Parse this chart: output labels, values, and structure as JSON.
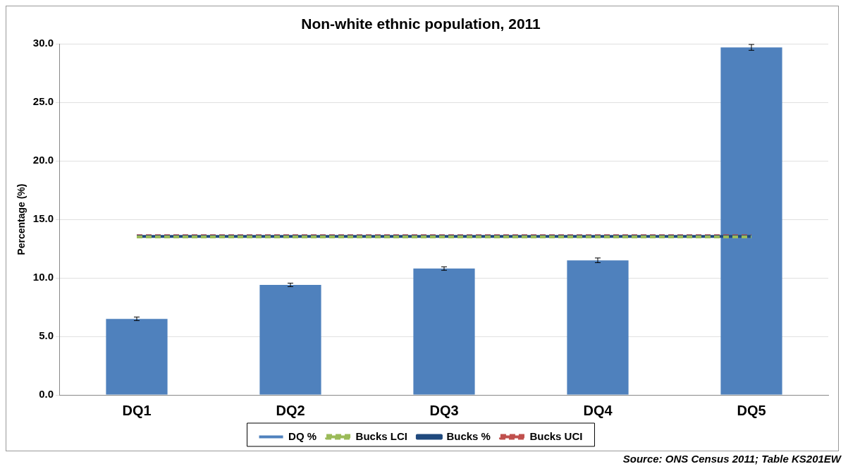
{
  "chart_data": {
    "type": "bar",
    "title": "Non-white ethnic population, 2011",
    "ylabel": "Percentage (%)",
    "categories": [
      "DQ1",
      "DQ2",
      "DQ3",
      "DQ4",
      "DQ5"
    ],
    "series": [
      {
        "name": "DQ %",
        "color": "#4f81bd",
        "values": [
          6.5,
          9.4,
          10.8,
          11.5,
          29.7
        ],
        "errors": [
          0.15,
          0.15,
          0.15,
          0.2,
          0.25
        ]
      },
      {
        "name": "Bucks LCI",
        "type": "line",
        "color": "#9bbb59",
        "line_style": "dashed",
        "values": [
          13.5,
          13.5,
          13.5,
          13.5,
          13.5
        ]
      },
      {
        "name": "Bucks %",
        "type": "line",
        "color": "#1f497d",
        "line_style": "solid",
        "values": [
          13.55,
          13.55,
          13.55,
          13.55,
          13.55
        ]
      },
      {
        "name": "Bucks UCI",
        "type": "line",
        "color": "#c0504d",
        "line_style": "dashed",
        "values": [
          13.6,
          13.6,
          13.6,
          13.6,
          13.6
        ]
      }
    ],
    "ylim": [
      0,
      30
    ],
    "yticks": [
      {
        "value": 0,
        "label": "0.0"
      },
      {
        "value": 5,
        "label": "5.0"
      },
      {
        "value": 10,
        "label": "10.0"
      },
      {
        "value": 15,
        "label": "15.0"
      },
      {
        "value": 20,
        "label": "20.0"
      },
      {
        "value": 25,
        "label": "25.0"
      },
      {
        "value": 30,
        "label": "30.0"
      }
    ],
    "grid": "y",
    "legend": "bottom",
    "marker": "none",
    "annotations": [
      "Source: ONS Census 2011; Table KS201EW"
    ]
  }
}
